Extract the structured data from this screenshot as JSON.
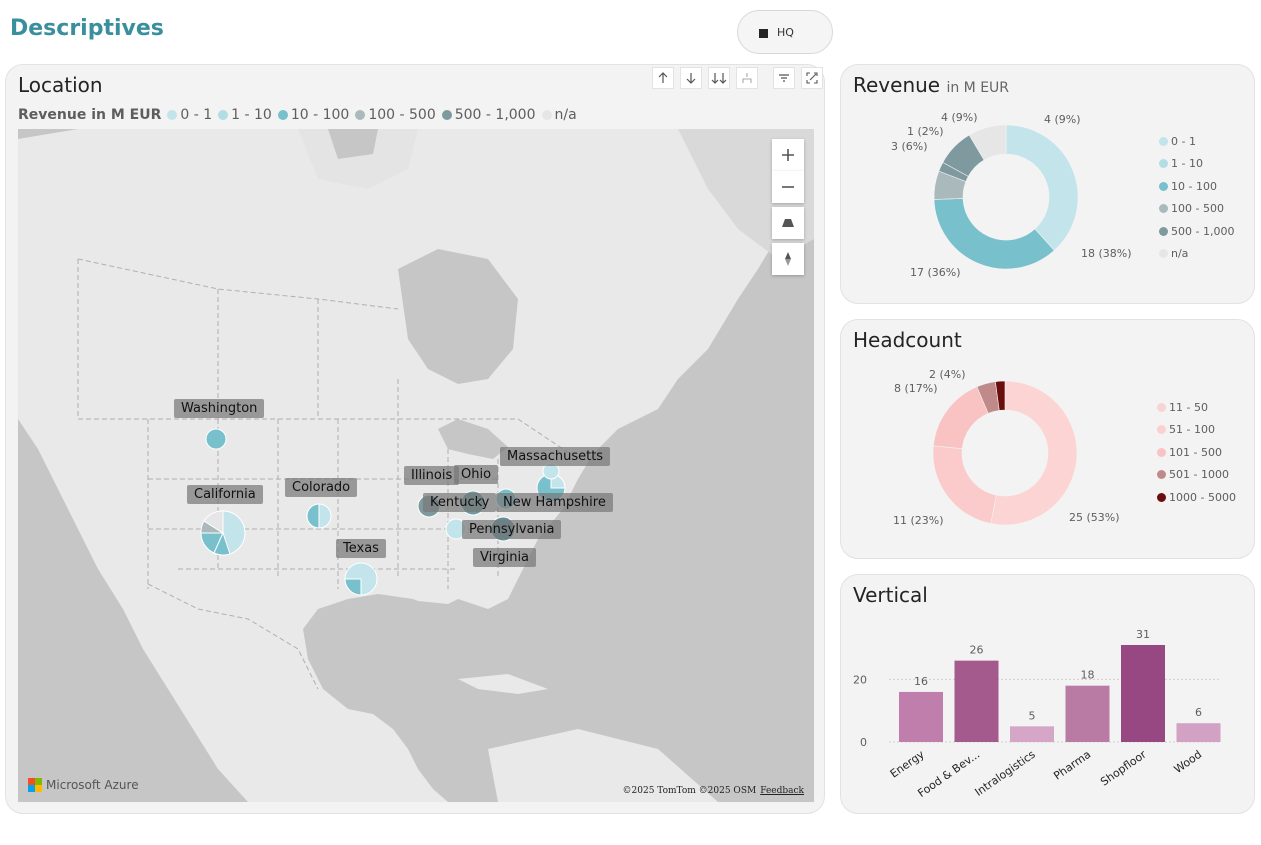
{
  "page": {
    "title": "Descriptives"
  },
  "filter": {
    "hq_label": "HQ"
  },
  "location": {
    "title": "Location",
    "legend_title": "Revenue in M EUR",
    "legend": [
      {
        "label": "0 - 1",
        "color": "#c2e4ea"
      },
      {
        "label": "1 - 10",
        "color": "#b2dde5"
      },
      {
        "label": "10 - 100",
        "color": "#78c0cc"
      },
      {
        "label": "100 - 500",
        "color": "#a9b9bc"
      },
      {
        "label": "500 - 1,000",
        "color": "#7f9a9f"
      },
      {
        "label": "n/a",
        "color": "#e6e6e6"
      }
    ],
    "toolbar_icons": [
      "arrow-up-icon",
      "arrow-down-icon",
      "double-arrow-down-icon",
      "hierarchy-icon",
      "filter-icon",
      "focus-mode-icon"
    ],
    "states": [
      "Washington",
      "California",
      "Colorado",
      "Texas",
      "Illinois",
      "Ohio",
      "Kentucky",
      "Massachusetts",
      "New Hampshire",
      "Pennsylvania",
      "Virginia"
    ],
    "map_brand": "Microsoft Azure",
    "attribution": "©2025 TomTom ©2025 OSM",
    "feedback": "Feedback"
  },
  "revenue": {
    "title": "Revenue",
    "subtitle": "in M EUR",
    "legend": [
      {
        "label": "0 - 1",
        "color": "#c2e4ea"
      },
      {
        "label": "1 - 10",
        "color": "#b2dde5"
      },
      {
        "label": "10 - 100",
        "color": "#78c0cc"
      },
      {
        "label": "100 - 500",
        "color": "#a9b9bc"
      },
      {
        "label": "500 - 1,000",
        "color": "#7f9a9f"
      },
      {
        "label": "n/a",
        "color": "#e6e6e6"
      }
    ],
    "labels": [
      "4 (9%)",
      "4 (9%)",
      "1 (2%)",
      "3 (6%)",
      "18 (38%)",
      "17 (36%)"
    ]
  },
  "headcount": {
    "title": "Headcount",
    "legend": [
      {
        "label": "11 - 50",
        "color": "#f8d3d3"
      },
      {
        "label": "51 - 100",
        "color": "#fcd0d0"
      },
      {
        "label": "101 - 500",
        "color": "#f9c3c3"
      },
      {
        "label": "501 - 1000",
        "color": "#c18a8a"
      },
      {
        "label": "1000 - 5000",
        "color": "#6b0d0d"
      }
    ],
    "labels": [
      "2 (4%)",
      "8 (17%)",
      "11 (23%)",
      "25 (53%)"
    ]
  },
  "vertical": {
    "title": "Vertical",
    "axis_ticks": [
      "20",
      "0"
    ]
  },
  "chart_data": [
    {
      "type": "pie",
      "title": "Revenue",
      "subtitle": "in M EUR",
      "categories": [
        "0 - 1",
        "1 - 10",
        "10 - 100",
        "100 - 500",
        "500 - 1,000",
        "n/a"
      ],
      "values": [
        18,
        17,
        3,
        1,
        4,
        4
      ],
      "donut": true,
      "legend_position": "right"
    },
    {
      "type": "pie",
      "title": "Headcount",
      "categories": [
        "11 - 50",
        "51 - 100",
        "101 - 500",
        "501 - 1000",
        "1000 - 5000"
      ],
      "values": [
        25,
        11,
        8,
        2,
        1
      ],
      "donut": true,
      "legend_position": "right"
    },
    {
      "type": "bar",
      "title": "Vertical",
      "categories": [
        "Energy",
        "Food & Bev...",
        "Intralogistics",
        "Pharma",
        "Shopfloor",
        "Wood"
      ],
      "values": [
        16,
        26,
        5,
        18,
        31,
        6
      ],
      "colors": [
        "#bf7eab",
        "#a55a8d",
        "#d6a6c8",
        "#b97aa3",
        "#974782",
        "#d3a1c3"
      ],
      "ylim": [
        0,
        31
      ],
      "yticks": [
        0,
        20
      ],
      "grid": true,
      "data_labels": true
    }
  ]
}
